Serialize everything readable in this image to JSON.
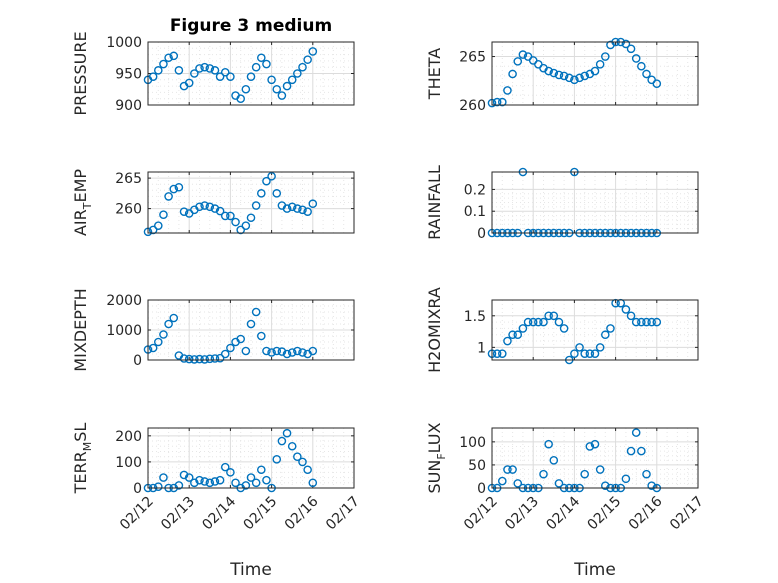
{
  "chart_data": {
    "type": "scatter",
    "title": "Figure 3 medium",
    "xlabel": "Time",
    "xticks": [
      "02/12",
      "02/13",
      "02/14",
      "02/15",
      "02/16",
      "02/17"
    ],
    "xlim": [
      "02/12",
      "02/17"
    ],
    "marker_color": "#0072BD",
    "grid": true,
    "panels": [
      {
        "id": "pressure",
        "ylabel": "PRESSURE",
        "ylim": [
          900,
          1000
        ],
        "yticks": [
          "900",
          "950",
          "1000"
        ],
        "x": [
          "02/12 00:00",
          "02/12 03:00",
          "02/12 06:00",
          "02/12 09:00",
          "02/12 12:00",
          "02/12 15:00",
          "02/12 18:00",
          "02/12 21:00",
          "02/13 00:00",
          "02/13 03:00",
          "02/13 06:00",
          "02/13 09:00",
          "02/13 12:00",
          "02/13 15:00",
          "02/13 18:00",
          "02/13 21:00",
          "02/14 00:00",
          "02/14 03:00",
          "02/14 06:00",
          "02/14 09:00",
          "02/14 12:00",
          "02/14 15:00",
          "02/14 18:00",
          "02/14 21:00",
          "02/15 00:00",
          "02/15 03:00",
          "02/15 06:00",
          "02/15 09:00",
          "02/15 12:00",
          "02/15 15:00",
          "02/15 18:00",
          "02/15 21:00",
          "02/16 00:00"
        ],
        "values": [
          940,
          945,
          955,
          965,
          975,
          978,
          955,
          930,
          935,
          950,
          958,
          960,
          958,
          955,
          945,
          952,
          945,
          915,
          910,
          925,
          945,
          960,
          975,
          965,
          940,
          925,
          915,
          930,
          940,
          950,
          960,
          972,
          985
        ]
      },
      {
        "id": "theta",
        "ylabel": "THETA",
        "ylim": [
          260,
          266.5
        ],
        "yticks": [
          "260",
          "265"
        ],
        "x": [
          "02/12 00:00",
          "02/12 03:00",
          "02/12 06:00",
          "02/12 09:00",
          "02/12 12:00",
          "02/12 15:00",
          "02/12 18:00",
          "02/12 21:00",
          "02/13 00:00",
          "02/13 03:00",
          "02/13 06:00",
          "02/13 09:00",
          "02/13 12:00",
          "02/13 15:00",
          "02/13 18:00",
          "02/13 21:00",
          "02/14 00:00",
          "02/14 03:00",
          "02/14 06:00",
          "02/14 09:00",
          "02/14 12:00",
          "02/14 15:00",
          "02/14 18:00",
          "02/14 21:00",
          "02/15 00:00",
          "02/15 03:00",
          "02/15 06:00",
          "02/15 09:00",
          "02/15 12:00",
          "02/15 15:00",
          "02/15 18:00",
          "02/15 21:00",
          "02/16 00:00"
        ],
        "values": [
          260.2,
          260.3,
          260.3,
          261.5,
          263.2,
          264.5,
          265.2,
          265.0,
          264.6,
          264.2,
          263.8,
          263.5,
          263.3,
          263.1,
          263.0,
          262.8,
          262.6,
          262.8,
          263.0,
          263.2,
          263.5,
          264.2,
          265.0,
          266.2,
          266.5,
          266.5,
          266.3,
          265.8,
          264.8,
          264.0,
          263.2,
          262.6,
          262.2
        ]
      },
      {
        "id": "air_temp",
        "ylabel": "AIR_TEMP",
        "ylim": [
          256,
          266
        ],
        "yticks": [
          "260",
          "265"
        ],
        "x": [
          "02/12 00:00",
          "02/12 03:00",
          "02/12 06:00",
          "02/12 09:00",
          "02/12 12:00",
          "02/12 15:00",
          "02/12 18:00",
          "02/12 21:00",
          "02/13 00:00",
          "02/13 03:00",
          "02/13 06:00",
          "02/13 09:00",
          "02/13 12:00",
          "02/13 15:00",
          "02/13 18:00",
          "02/13 21:00",
          "02/14 00:00",
          "02/14 03:00",
          "02/14 06:00",
          "02/14 09:00",
          "02/14 12:00",
          "02/14 15:00",
          "02/14 18:00",
          "02/14 21:00",
          "02/15 00:00",
          "02/15 03:00",
          "02/15 06:00",
          "02/15 09:00",
          "02/15 12:00",
          "02/15 15:00",
          "02/15 18:00",
          "02/15 21:00",
          "02/16 00:00"
        ],
        "values": [
          256.2,
          256.5,
          257.2,
          259.0,
          262.0,
          263.2,
          263.5,
          259.5,
          259.2,
          259.8,
          260.3,
          260.5,
          260.3,
          260.0,
          259.6,
          258.8,
          258.8,
          257.8,
          256.5,
          257.2,
          258.5,
          260.5,
          262.5,
          264.5,
          265.3,
          262.5,
          260.5,
          260.0,
          260.3,
          260.0,
          259.8,
          259.5,
          260.8
        ]
      },
      {
        "id": "rainfall",
        "ylabel": "RAINFALL",
        "ylim": [
          0,
          0.28
        ],
        "yticks": [
          "0",
          "0.1",
          "0.2"
        ],
        "x": [
          "02/12 00:00",
          "02/12 03:00",
          "02/12 06:00",
          "02/12 09:00",
          "02/12 12:00",
          "02/12 15:00",
          "02/12 18:00",
          "02/12 21:00",
          "02/13 00:00",
          "02/13 03:00",
          "02/13 06:00",
          "02/13 09:00",
          "02/13 12:00",
          "02/13 15:00",
          "02/13 18:00",
          "02/13 21:00",
          "02/14 00:00",
          "02/14 03:00",
          "02/14 06:00",
          "02/14 09:00",
          "02/14 12:00",
          "02/14 15:00",
          "02/14 18:00",
          "02/14 21:00",
          "02/15 00:00",
          "02/15 03:00",
          "02/15 06:00",
          "02/15 09:00",
          "02/15 12:00",
          "02/15 15:00",
          "02/15 18:00",
          "02/15 21:00",
          "02/16 00:00"
        ],
        "values": [
          0,
          0,
          0,
          0,
          0,
          0,
          0.28,
          0,
          0,
          0,
          0,
          0,
          0,
          0,
          0,
          0,
          0.28,
          0,
          0,
          0,
          0,
          0,
          0,
          0,
          0,
          0,
          0,
          0,
          0,
          0,
          0,
          0,
          0
        ]
      },
      {
        "id": "mixdepth",
        "ylabel": "MIXDEPTH",
        "ylim": [
          0,
          2000
        ],
        "yticks": [
          "0",
          "1000",
          "2000"
        ],
        "x": [
          "02/12 00:00",
          "02/12 03:00",
          "02/12 06:00",
          "02/12 09:00",
          "02/12 12:00",
          "02/12 15:00",
          "02/12 18:00",
          "02/12 21:00",
          "02/13 00:00",
          "02/13 03:00",
          "02/13 06:00",
          "02/13 09:00",
          "02/13 12:00",
          "02/13 15:00",
          "02/13 18:00",
          "02/13 21:00",
          "02/14 00:00",
          "02/14 03:00",
          "02/14 06:00",
          "02/14 09:00",
          "02/14 12:00",
          "02/14 15:00",
          "02/14 18:00",
          "02/14 21:00",
          "02/15 00:00",
          "02/15 03:00",
          "02/15 06:00",
          "02/15 09:00",
          "02/15 12:00",
          "02/15 15:00",
          "02/15 18:00",
          "02/15 21:00",
          "02/16 00:00"
        ],
        "values": [
          350,
          400,
          600,
          850,
          1200,
          1400,
          150,
          50,
          30,
          20,
          30,
          20,
          40,
          50,
          60,
          200,
          400,
          600,
          700,
          300,
          1200,
          1600,
          800,
          300,
          250,
          300,
          280,
          200,
          250,
          300,
          250,
          200,
          300
        ]
      },
      {
        "id": "h2omixra",
        "ylabel": "H2OMIXRA",
        "ylim": [
          0.8,
          1.75
        ],
        "yticks": [
          "1",
          "1.5"
        ],
        "x": [
          "02/12 00:00",
          "02/12 03:00",
          "02/12 06:00",
          "02/12 09:00",
          "02/12 12:00",
          "02/12 15:00",
          "02/12 18:00",
          "02/12 21:00",
          "02/13 00:00",
          "02/13 03:00",
          "02/13 06:00",
          "02/13 09:00",
          "02/13 12:00",
          "02/13 15:00",
          "02/13 18:00",
          "02/13 21:00",
          "02/14 00:00",
          "02/14 03:00",
          "02/14 06:00",
          "02/14 09:00",
          "02/14 12:00",
          "02/14 15:00",
          "02/14 18:00",
          "02/14 21:00",
          "02/15 00:00",
          "02/15 03:00",
          "02/15 06:00",
          "02/15 09:00",
          "02/15 12:00",
          "02/15 15:00",
          "02/15 18:00",
          "02/15 21:00",
          "02/16 00:00"
        ],
        "values": [
          0.9,
          0.9,
          0.9,
          1.1,
          1.2,
          1.2,
          1.3,
          1.4,
          1.4,
          1.4,
          1.4,
          1.5,
          1.5,
          1.4,
          1.3,
          0.8,
          0.9,
          1.0,
          0.9,
          0.9,
          0.9,
          1.0,
          1.2,
          1.3,
          1.7,
          1.7,
          1.6,
          1.5,
          1.4,
          1.4,
          1.4,
          1.4,
          1.4
        ]
      },
      {
        "id": "terr_msl",
        "ylabel": "TERR_MSL",
        "ylim": [
          0,
          230
        ],
        "yticks": [
          "0",
          "100",
          "200"
        ],
        "x": [
          "02/12 00:00",
          "02/12 03:00",
          "02/12 06:00",
          "02/12 09:00",
          "02/12 12:00",
          "02/12 15:00",
          "02/12 18:00",
          "02/12 21:00",
          "02/13 00:00",
          "02/13 03:00",
          "02/13 06:00",
          "02/13 09:00",
          "02/13 12:00",
          "02/13 15:00",
          "02/13 18:00",
          "02/13 21:00",
          "02/14 00:00",
          "02/14 03:00",
          "02/14 06:00",
          "02/14 09:00",
          "02/14 12:00",
          "02/14 15:00",
          "02/14 18:00",
          "02/14 21:00",
          "02/15 00:00",
          "02/15 03:00",
          "02/15 06:00",
          "02/15 09:00",
          "02/15 12:00",
          "02/15 15:00",
          "02/15 18:00",
          "02/15 21:00",
          "02/16 00:00"
        ],
        "values": [
          0,
          0,
          5,
          40,
          0,
          0,
          10,
          50,
          40,
          20,
          30,
          25,
          20,
          25,
          30,
          80,
          60,
          20,
          0,
          10,
          40,
          20,
          70,
          30,
          0,
          110,
          180,
          210,
          160,
          120,
          100,
          70,
          20
        ]
      },
      {
        "id": "sun_flux",
        "ylabel": "SUN_FLUX",
        "ylim": [
          0,
          130
        ],
        "yticks": [
          "0",
          "50",
          "100"
        ],
        "x": [
          "02/12 00:00",
          "02/12 03:00",
          "02/12 06:00",
          "02/12 09:00",
          "02/12 12:00",
          "02/12 15:00",
          "02/12 18:00",
          "02/12 21:00",
          "02/13 00:00",
          "02/13 03:00",
          "02/13 06:00",
          "02/13 09:00",
          "02/13 12:00",
          "02/13 15:00",
          "02/13 18:00",
          "02/13 21:00",
          "02/14 00:00",
          "02/14 03:00",
          "02/14 06:00",
          "02/14 09:00",
          "02/14 12:00",
          "02/14 15:00",
          "02/14 18:00",
          "02/14 21:00",
          "02/15 00:00",
          "02/15 03:00",
          "02/15 06:00",
          "02/15 09:00",
          "02/15 12:00",
          "02/15 15:00",
          "02/15 18:00",
          "02/15 21:00",
          "02/16 00:00"
        ],
        "values": [
          0,
          0,
          15,
          40,
          40,
          10,
          0,
          0,
          0,
          0,
          30,
          95,
          60,
          10,
          0,
          0,
          0,
          0,
          30,
          90,
          95,
          40,
          5,
          0,
          0,
          0,
          20,
          80,
          120,
          80,
          30,
          5,
          0
        ]
      }
    ]
  }
}
